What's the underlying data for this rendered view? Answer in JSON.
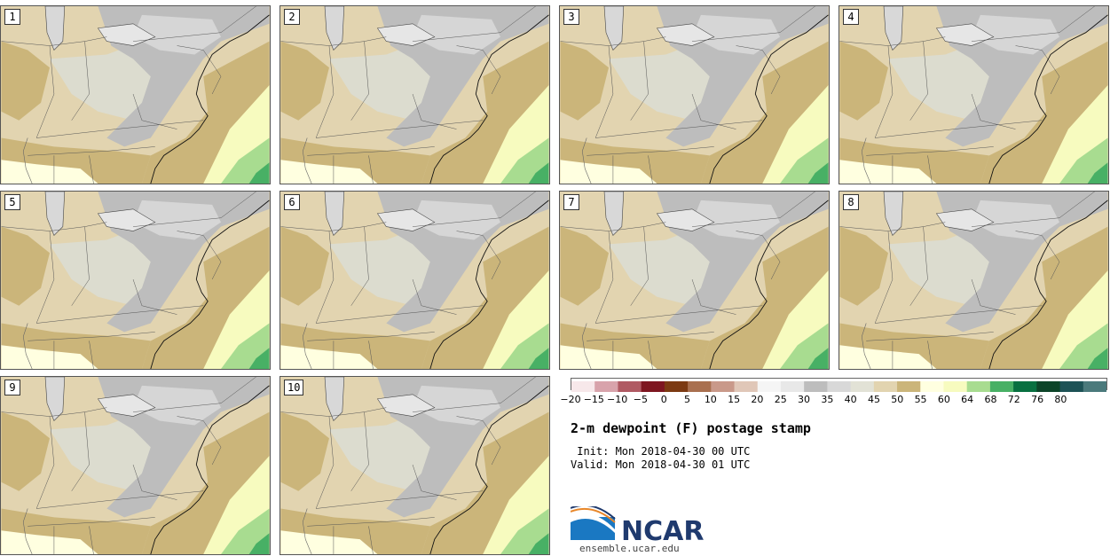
{
  "panels": [
    {
      "label": "1"
    },
    {
      "label": "2"
    },
    {
      "label": "3"
    },
    {
      "label": "4"
    },
    {
      "label": "5"
    },
    {
      "label": "6"
    },
    {
      "label": "7"
    },
    {
      "label": "8"
    },
    {
      "label": "9"
    },
    {
      "label": "10"
    }
  ],
  "colorbar": {
    "colors": [
      "#f7e8ea",
      "#d8a3ab",
      "#b05a63",
      "#7e1620",
      "#7c3a12",
      "#a9704f",
      "#c9998a",
      "#e0c7b8",
      "#f5f5f5",
      "#e8e8e8",
      "#bdbdbd",
      "#d8d8d8",
      "#e2e2d6",
      "#e2d4b0",
      "#cbb57a",
      "#ffffe0",
      "#f7fbbf",
      "#a8dc90",
      "#48b065",
      "#087040",
      "#0c4428",
      "#1d5256",
      "#4b7a7c"
    ],
    "ticks": [
      "−20",
      "−15",
      "−10",
      "−5",
      "0",
      "5",
      "10",
      "15",
      "20",
      "25",
      "30",
      "35",
      "40",
      "45",
      "50",
      "55",
      "60",
      "64",
      "68",
      "72",
      "76",
      "80"
    ]
  },
  "title": "2-m dewpoint (F) postage stamp",
  "init": " Init: Mon 2018-04-30 00 UTC",
  "valid": "Valid: Mon 2018-04-30 01 UTC",
  "logo_text": "NCAR",
  "site": "ensemble.ucar.edu"
}
